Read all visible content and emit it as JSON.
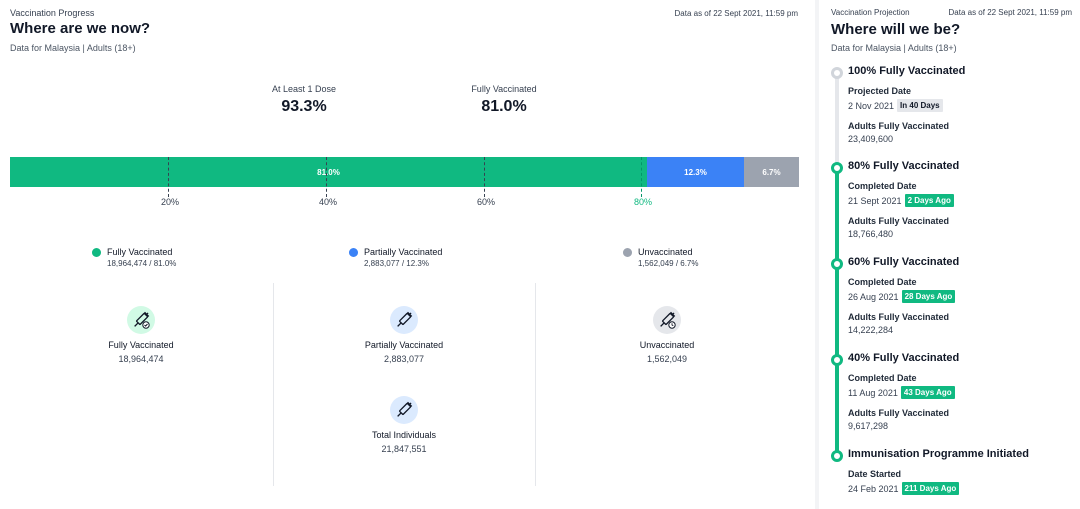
{
  "left": {
    "eyebrow": "Vaccination Progress",
    "as_of": "Data as of 22 Sept 2021, 11:59 pm",
    "title": "Where are we now?",
    "subtitle": "Data for Malaysia | Adults (18+)",
    "stats": [
      {
        "label": "At Least 1 Dose",
        "value": "93.3%"
      },
      {
        "label": "Fully Vaccinated",
        "value": "81.0%"
      }
    ],
    "bar": {
      "segments": [
        {
          "label": "81.0%",
          "percent": 81.0,
          "color": "#10b981"
        },
        {
          "label": "12.3%",
          "percent": 12.3,
          "color": "#3b82f6"
        },
        {
          "label": "6.7%",
          "percent": 6.7,
          "color": "#9ca3af"
        }
      ],
      "ticks": [
        "20%",
        "40%",
        "60%",
        "80%"
      ]
    },
    "legend": [
      {
        "name": "Fully Vaccinated",
        "value": "18,964,474 / 81.0%",
        "color": "#10b981"
      },
      {
        "name": "Partially Vaccinated",
        "value": "2,883,077 / 12.3%",
        "color": "#3b82f6"
      },
      {
        "name": "Unvaccinated",
        "value": "1,562,049 / 6.7%",
        "color": "#9ca3af"
      }
    ],
    "cards": [
      {
        "name": "Fully Vaccinated",
        "value": "18,964,474",
        "icon": "syringe-check-icon"
      },
      {
        "name": "Partially Vaccinated",
        "value": "2,883,077",
        "icon": "syringe-icon"
      },
      {
        "name": "Unvaccinated",
        "value": "1,562,049",
        "icon": "syringe-clock-icon"
      },
      {
        "name": "Total Individuals",
        "value": "21,847,551",
        "icon": "syringe-icon"
      }
    ]
  },
  "right": {
    "eyebrow": "Vaccination Projection",
    "as_of": "Data as of 22 Sept 2021, 11:59 pm",
    "title": "Where will we be?",
    "subtitle": "Data for Malaysia | Adults (18+)",
    "milestones": [
      {
        "title": "100% Fully Vaccinated",
        "date_label": "Projected Date",
        "date": "2 Nov 2021",
        "badge": "In 40 Days",
        "badge_color": "gray",
        "count_label": "Adults Fully Vaccinated",
        "count": "23,409,600"
      },
      {
        "title": "80% Fully Vaccinated",
        "date_label": "Completed Date",
        "date": "21 Sept 2021",
        "badge": "2 Days Ago",
        "badge_color": "green",
        "count_label": "Adults Fully Vaccinated",
        "count": "18,766,480"
      },
      {
        "title": "60% Fully Vaccinated",
        "date_label": "Completed Date",
        "date": "26 Aug 2021",
        "badge": "28 Days Ago",
        "badge_color": "green",
        "count_label": "Adults Fully Vaccinated",
        "count": "14,222,284"
      },
      {
        "title": "40% Fully Vaccinated",
        "date_label": "Completed Date",
        "date": "11 Aug 2021",
        "badge": "43 Days Ago",
        "badge_color": "green",
        "count_label": "Adults Fully Vaccinated",
        "count": "9,617,298"
      },
      {
        "title": "Immunisation Programme Initiated",
        "date_label": "Date Started",
        "date": "24 Feb 2021",
        "badge": "211 Days Ago",
        "badge_color": "green"
      }
    ]
  }
}
